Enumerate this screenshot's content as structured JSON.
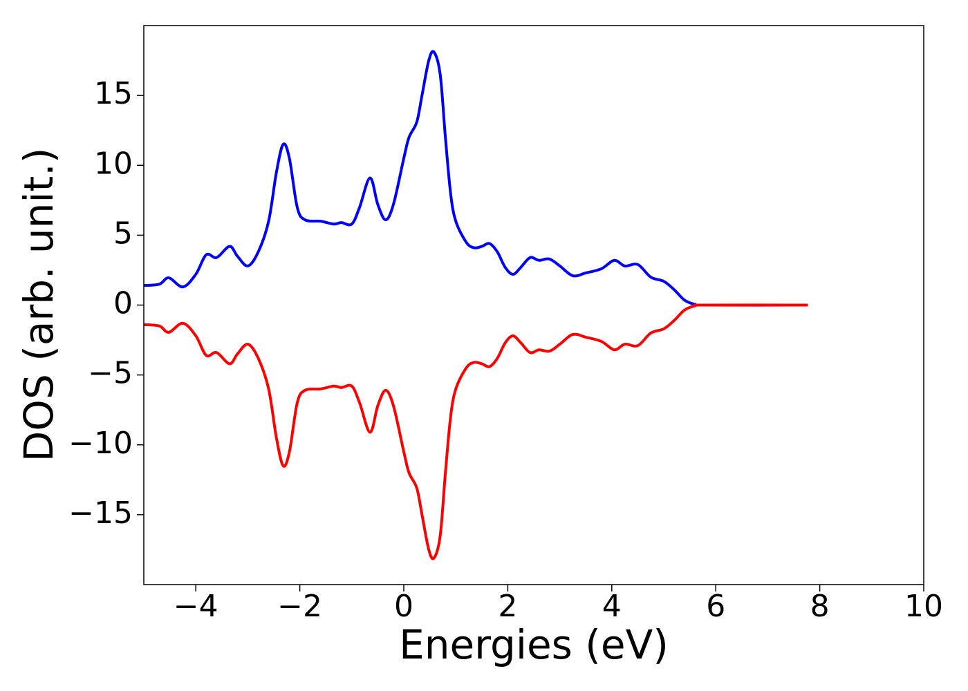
{
  "chart_data": {
    "type": "line",
    "xlabel": "Energies (eV)",
    "ylabel": "DOS (arb. unit.)",
    "x": [
      -5,
      -4.7,
      -4.52,
      -4.25,
      -4.0,
      -3.8,
      -3.6,
      -3.35,
      -3.2,
      -3.0,
      -2.8,
      -2.6,
      -2.45,
      -2.32,
      -2.2,
      -2.05,
      -1.9,
      -1.6,
      -1.35,
      -1.2,
      -1.0,
      -0.85,
      -0.65,
      -0.5,
      -0.35,
      -0.2,
      0.0,
      0.1,
      0.25,
      0.35,
      0.48,
      0.58,
      0.7,
      0.8,
      0.9,
      1.0,
      1.2,
      1.35,
      1.5,
      1.65,
      1.8,
      1.95,
      2.1,
      2.25,
      2.43,
      2.6,
      2.8,
      3.0,
      3.25,
      3.5,
      3.8,
      4.05,
      4.25,
      4.5,
      4.75,
      5.0,
      5.2,
      5.4,
      5.6,
      5.8,
      7.77
    ],
    "series": [
      {
        "color": "#0000ff",
        "values": [
          1.4,
          1.5,
          1.95,
          1.3,
          2.2,
          3.6,
          3.4,
          4.2,
          3.5,
          2.8,
          3.8,
          6.0,
          9.5,
          11.5,
          10.5,
          7.0,
          6.1,
          6.0,
          5.8,
          5.9,
          5.8,
          7.0,
          9.1,
          7.2,
          6.1,
          7.2,
          10.5,
          12.0,
          13.1,
          15.0,
          17.5,
          18.1,
          16.5,
          12.0,
          8.0,
          6.0,
          4.5,
          4.1,
          4.2,
          4.4,
          3.8,
          2.7,
          2.2,
          2.7,
          3.4,
          3.2,
          3.3,
          2.8,
          2.1,
          2.3,
          2.6,
          3.2,
          2.8,
          2.9,
          2.0,
          1.7,
          1.1,
          0.35,
          0.05,
          0,
          0
        ]
      },
      {
        "color": "#ff0000",
        "values": [
          -1.4,
          -1.5,
          -1.95,
          -1.3,
          -2.2,
          -3.6,
          -3.4,
          -4.2,
          -3.5,
          -2.8,
          -3.8,
          -6.0,
          -9.5,
          -11.5,
          -10.5,
          -7.0,
          -6.1,
          -6.0,
          -5.8,
          -5.9,
          -5.8,
          -7.0,
          -9.1,
          -7.2,
          -6.1,
          -7.2,
          -10.5,
          -12.0,
          -13.1,
          -15.0,
          -17.5,
          -18.1,
          -16.5,
          -12.0,
          -8.0,
          -6.0,
          -4.5,
          -4.1,
          -4.2,
          -4.4,
          -3.8,
          -2.7,
          -2.2,
          -2.7,
          -3.4,
          -3.2,
          -3.3,
          -2.8,
          -2.1,
          -2.3,
          -2.6,
          -3.2,
          -2.8,
          -2.9,
          -2.0,
          -1.7,
          -1.1,
          -0.35,
          -0.05,
          0,
          0
        ]
      }
    ],
    "xlim": [
      -5,
      10
    ],
    "xticks": [
      {
        "value": -4,
        "label": "−4"
      },
      {
        "value": -2,
        "label": "−2"
      },
      0,
      2,
      4,
      6,
      8,
      10
    ],
    "ylim": [
      -20,
      20
    ],
    "yticks": [
      {
        "value": -15,
        "label": "−15"
      },
      {
        "value": -10,
        "label": "−10"
      },
      {
        "value": -5,
        "label": "−5"
      },
      0,
      5,
      10,
      15
    ]
  }
}
